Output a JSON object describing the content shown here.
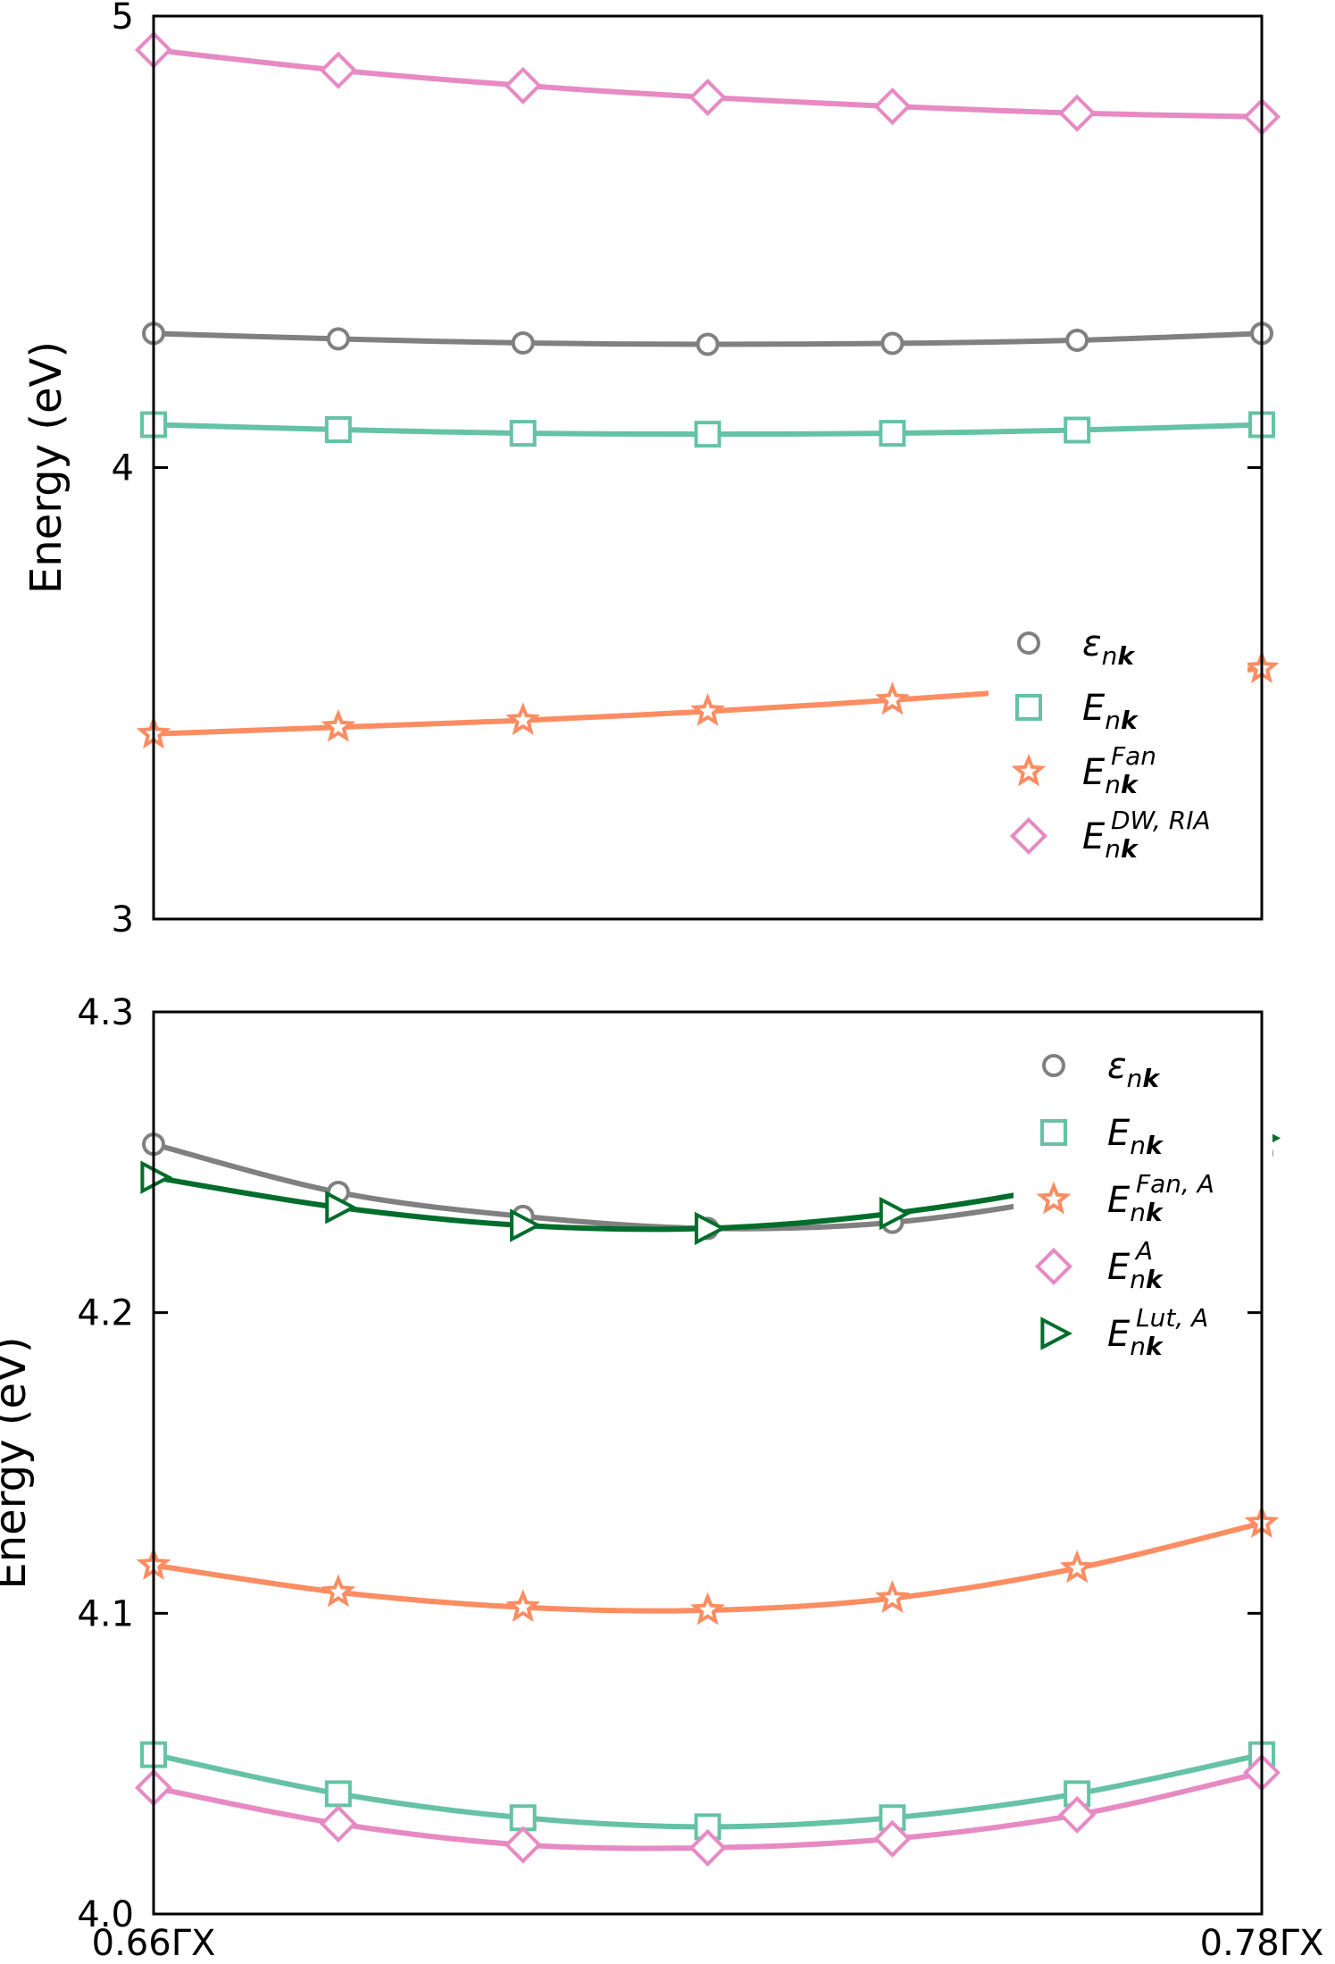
{
  "chart_data": [
    {
      "type": "line",
      "panel": "top",
      "title": "",
      "xlabel": "",
      "ylabel": "Energy (eV)",
      "ylim": [
        3,
        5
      ],
      "yticks": [
        "3",
        "4",
        "5"
      ],
      "xlim": [
        0.66,
        0.78
      ],
      "x": [
        0.66,
        0.68,
        0.7,
        0.72,
        0.74,
        0.76,
        0.78
      ],
      "legend_position": "center-right",
      "series": [
        {
          "name": "ε_nk",
          "color": "#808080",
          "marker": "circle",
          "values": [
            4.297,
            4.285,
            4.276,
            4.273,
            4.275,
            4.282,
            4.297
          ]
        },
        {
          "name": "E_nk",
          "color": "#66c2a5",
          "marker": "square",
          "values": [
            4.095,
            4.084,
            4.076,
            4.074,
            4.076,
            4.083,
            4.095
          ]
        },
        {
          "name": "E_nk^Fan",
          "color": "#fc8d62",
          "marker": "star",
          "values": [
            3.41,
            3.425,
            3.44,
            3.46,
            3.485,
            3.515,
            3.555
          ]
        },
        {
          "name": "E_nk^DW,RIA",
          "color": "#e78ac3",
          "marker": "diamond",
          "values": [
            4.925,
            4.88,
            4.846,
            4.82,
            4.8,
            4.785,
            4.777
          ]
        }
      ]
    },
    {
      "type": "line",
      "panel": "bottom",
      "title": "",
      "xlabel": "",
      "ylabel": "Energy (eV)",
      "ylim": [
        4.0,
        4.3
      ],
      "yticks": [
        "4.0",
        "4.1",
        "4.2",
        "4.3"
      ],
      "xlim": [
        0.66,
        0.78
      ],
      "x": [
        0.66,
        0.68,
        0.7,
        0.72,
        0.74,
        0.76,
        0.78
      ],
      "xticks": [
        "0.66ΓX",
        "0.78ΓX"
      ],
      "legend_position": "top-right",
      "series": [
        {
          "name": "ε_nk",
          "color": "#808080",
          "marker": "circle",
          "values": [
            4.256,
            4.24,
            4.232,
            4.228,
            4.23,
            4.239,
            4.253
          ]
        },
        {
          "name": "E_nk",
          "color": "#66c2a5",
          "marker": "square",
          "values": [
            4.053,
            4.04,
            4.032,
            4.029,
            4.032,
            4.04,
            4.053
          ]
        },
        {
          "name": "E_nk^Fan,A",
          "color": "#fc8d62",
          "marker": "star",
          "values": [
            4.116,
            4.107,
            4.102,
            4.101,
            4.105,
            4.115,
            4.13
          ]
        },
        {
          "name": "E_nk^A",
          "color": "#e78ac3",
          "marker": "diamond",
          "values": [
            4.042,
            4.03,
            4.023,
            4.022,
            4.025,
            4.033,
            4.047
          ]
        },
        {
          "name": "E_nk^Lut,A",
          "color": "#006d2c",
          "marker": "triangle-right",
          "values": [
            4.245,
            4.235,
            4.229,
            4.228,
            4.233,
            4.243,
            4.258
          ]
        }
      ]
    }
  ],
  "legends": {
    "top": [
      {
        "main": "ε",
        "sub": "n",
        "subbold": "k",
        "sup": ""
      },
      {
        "main": "E",
        "sub": "n",
        "subbold": "k",
        "sup": ""
      },
      {
        "main": "E",
        "sub": "n",
        "subbold": "k",
        "sup": "Fan"
      },
      {
        "main": "E",
        "sub": "n",
        "subbold": "k",
        "sup": "DW, RIA"
      }
    ],
    "bottom": [
      {
        "main": "ε",
        "sub": "n",
        "subbold": "k",
        "sup": ""
      },
      {
        "main": "E",
        "sub": "n",
        "subbold": "k",
        "sup": ""
      },
      {
        "main": "E",
        "sub": "n",
        "subbold": "k",
        "sup": "Fan, A"
      },
      {
        "main": "E",
        "sub": "n",
        "subbold": "k",
        "sup": "A"
      },
      {
        "main": "E",
        "sub": "n",
        "subbold": "k",
        "sup": "Lut, A"
      }
    ]
  }
}
